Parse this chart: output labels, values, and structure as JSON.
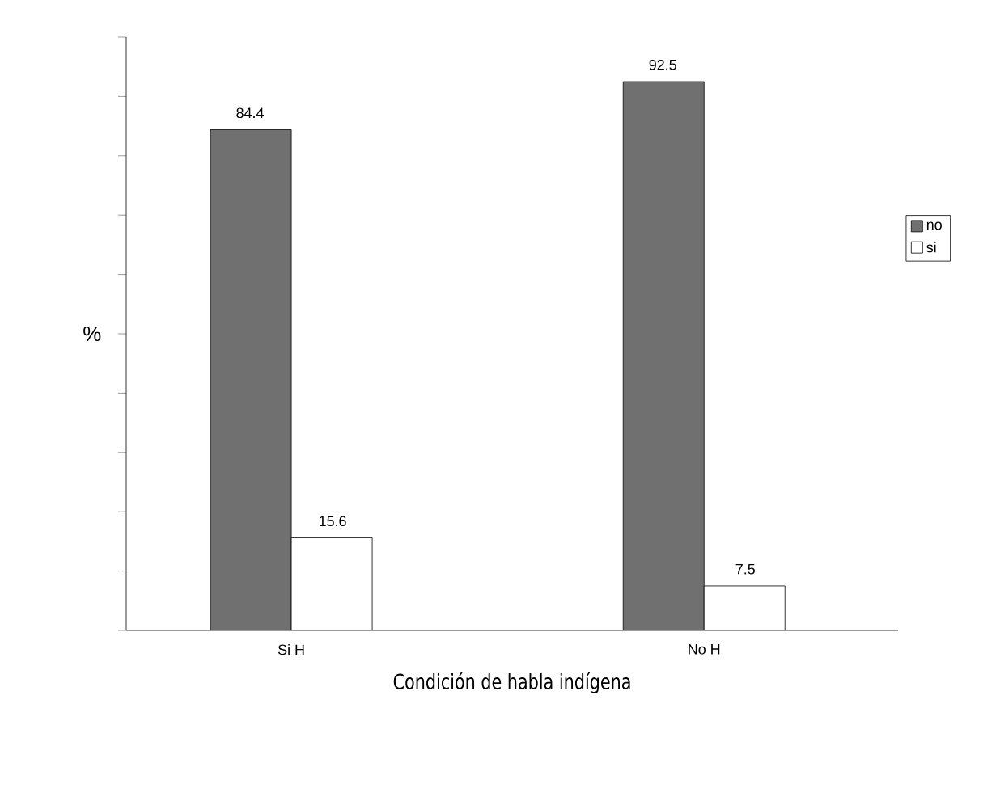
{
  "chart_data": {
    "type": "bar",
    "categories": [
      "Si H",
      "No H"
    ],
    "series": [
      {
        "name": "no",
        "color": "#707070",
        "values": [
          84.4,
          92.5
        ]
      },
      {
        "name": "si",
        "color": "#ffffff",
        "values": [
          15.6,
          7.5
        ]
      }
    ],
    "ylabel": "%",
    "xlabel": "Condición de habla indígena",
    "ylim": [
      0,
      100
    ],
    "yticks": [
      {
        "value": 0,
        "label": null
      },
      {
        "value": 10,
        "label": null
      },
      {
        "value": 20,
        "label": null
      },
      {
        "value": 30,
        "label": null
      },
      {
        "value": 40,
        "label": null
      },
      {
        "value": 50,
        "label": null
      },
      {
        "value": 60,
        "label": null
      },
      {
        "value": 70,
        "label": null
      },
      {
        "value": 80,
        "label": null
      },
      {
        "value": 90,
        "label": null
      },
      {
        "value": 100,
        "label": null
      }
    ],
    "data_labels": true,
    "legend": "right",
    "grid": false
  }
}
